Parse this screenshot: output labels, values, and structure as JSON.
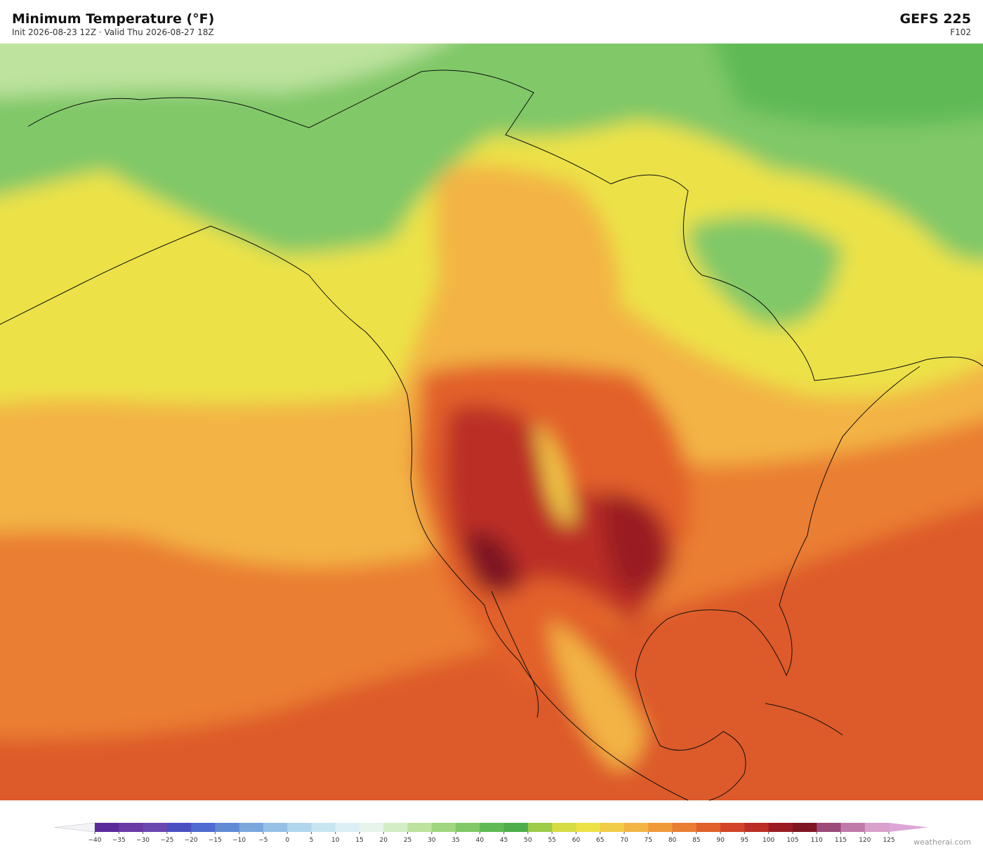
{
  "header": {
    "title": "Minimum Temperature  (°F)",
    "subtitle": "Init 2026-08-23 12Z  ·  Valid Thu 2026-08-27 18Z",
    "model": "GEFS  225",
    "forecast_hour": "F102"
  },
  "colorbar": {
    "ticks": [
      {
        "value": -40,
        "label": "−40"
      },
      {
        "value": -35,
        "label": "−35"
      },
      {
        "value": -30,
        "label": "−30"
      },
      {
        "value": -25,
        "label": "−25"
      },
      {
        "value": -20,
        "label": "−20"
      },
      {
        "value": -15,
        "label": "−15"
      },
      {
        "value": -10,
        "label": "−10"
      },
      {
        "value": -5,
        "label": "−5"
      },
      0,
      5,
      10,
      15,
      20,
      25,
      30,
      35,
      40,
      45,
      50,
      55,
      60,
      65,
      70,
      75,
      80,
      85,
      90,
      95,
      100,
      105,
      110,
      115,
      120,
      125
    ],
    "colors": [
      "#5b2a9a",
      "#6a3aa5",
      "#6b48b0",
      "#4a4fc0",
      "#4f6ad0",
      "#628bd6",
      "#7aa6dc",
      "#96c1e6",
      "#b0d6ee",
      "#c8e6f2",
      "#dceff4",
      "#e6f4ec",
      "#d3edc6",
      "#bde39e",
      "#9fd67f",
      "#80c868",
      "#5fba56",
      "#4dae4b",
      "#9ccc48",
      "#d6dc44",
      "#ece246",
      "#f2cd48",
      "#f3b444",
      "#ef9a3a",
      "#ea7e33",
      "#e2602c",
      "#d44428",
      "#bb2e26",
      "#9a1c22",
      "#7e1622",
      "#9b4a7a",
      "#c07aaa",
      "#d9a0cc"
    ],
    "under_color": "#f4f4f8",
    "over_color": "#dca6d6"
  },
  "footer": {
    "credit": "weatherai.com"
  }
}
